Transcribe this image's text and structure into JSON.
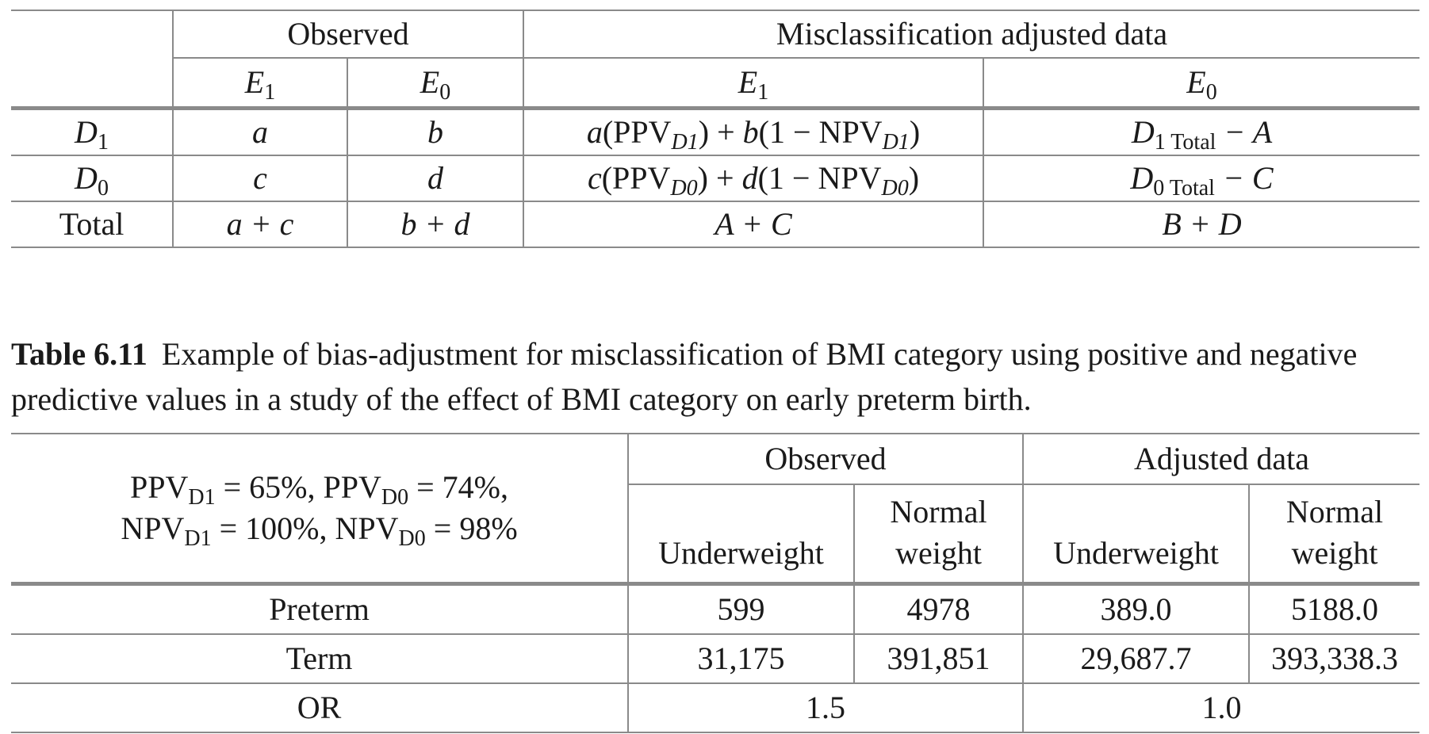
{
  "table1": {
    "group_headers": [
      "Observed",
      "Misclassification adjusted data"
    ],
    "col_headers": [
      {
        "base": "E",
        "sub": "1"
      },
      {
        "base": "E",
        "sub": "0"
      },
      {
        "base": "E",
        "sub": "1"
      },
      {
        "base": "E",
        "sub": "0"
      }
    ],
    "rows": [
      {
        "label": {
          "base": "D",
          "sub": "1"
        },
        "obs_e1": "a",
        "obs_e0": "b",
        "adj_e1": {
          "t1": "a",
          "t2": "(PPV",
          "s1": "D1",
          "t3": ") + ",
          "t4": "b",
          "t5": "(1 − NPV",
          "s2": "D1",
          "t6": ")"
        },
        "adj_e0": {
          "d": "D",
          "ds": "1 Total",
          "rest": " − A"
        }
      },
      {
        "label": {
          "base": "D",
          "sub": "0"
        },
        "obs_e1": "c",
        "obs_e0": "d",
        "adj_e1": {
          "t1": "c",
          "t2": "(PPV",
          "s1": "D0",
          "t3": ") + ",
          "t4": "d",
          "t5": "(1 − NPV",
          "s2": "D0",
          "t6": ")"
        },
        "adj_e0": {
          "d": "D",
          "ds": "0 Total",
          "rest": " − C"
        }
      }
    ],
    "total_row": {
      "label": "Total",
      "obs_e1": "a + c",
      "obs_e0": "b + d",
      "adj_e1": "A + C",
      "adj_e0": "B + D"
    }
  },
  "caption": {
    "label": "Table 6.11",
    "text": "Example of bias-adjustment for misclassification of BMI category using positive and negative predictive values in a study of the effect of BMI category on early preterm birth."
  },
  "table2": {
    "group_headers": [
      "Observed",
      "Adjusted data"
    ],
    "params": {
      "p1": "PPV",
      "p1s": "D1",
      "p1v": " = 65%, ",
      "p2": "PPV",
      "p2s": "D0",
      "p2v": " = 74%,",
      "p3": "NPV",
      "p3s": "D1",
      "p3v": " = 100%, ",
      "p4": "NPV",
      "p4s": "D0",
      "p4v": " = 98%"
    },
    "col_headers": [
      {
        "l1": "",
        "l2": "Underweight"
      },
      {
        "l1": "Normal",
        "l2": "weight"
      },
      {
        "l1": "",
        "l2": "Underweight"
      },
      {
        "l1": "Normal",
        "l2": "weight"
      }
    ],
    "rows": [
      {
        "label": "Preterm",
        "values": [
          "599",
          "4978",
          "389.0",
          "5188.0"
        ]
      },
      {
        "label": "Term",
        "values": [
          "31,175",
          "391,851",
          "29,687.7",
          "393,338.3"
        ]
      }
    ],
    "or_row": {
      "label": "OR",
      "observed": "1.5",
      "adjusted": "1.0"
    }
  }
}
